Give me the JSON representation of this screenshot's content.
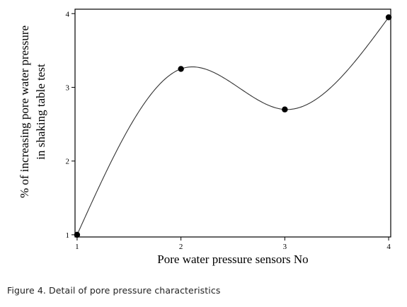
{
  "figure": {
    "caption": "Figure 4. Detail of pore pressure characteristics"
  },
  "chart_data": {
    "type": "line",
    "title": "",
    "xlabel": "Pore water pressure sensors No",
    "ylabel_lines": [
      "% of increasing pore water pressure",
      "in shaking table test"
    ],
    "x": [
      1,
      2,
      3,
      4
    ],
    "xticks": [
      "1",
      "2",
      "3",
      "4"
    ],
    "yticks": [
      "1",
      "2",
      "3",
      "4"
    ],
    "xlim": [
      0.98,
      4.02
    ],
    "ylim": [
      0.97,
      4.06
    ],
    "series": [
      {
        "values": [
          1.0,
          3.25,
          2.7,
          3.95
        ],
        "smooth": true,
        "markers": true
      }
    ],
    "grid": false,
    "legend": "none",
    "colors": {
      "line": "#333333",
      "marker": "#000000",
      "axis": "#000000",
      "frame": "#000000"
    }
  }
}
